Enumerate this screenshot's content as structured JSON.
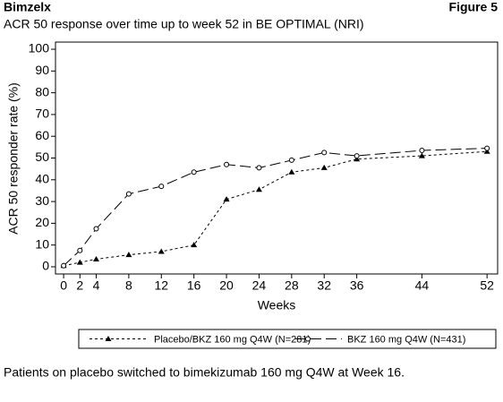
{
  "header": "Bimzelx",
  "figure_label": "Figure 5",
  "footnote": "Patients on placebo switched to bimekizumab 160 mg Q4W at Week 16.",
  "chart_data": {
    "type": "line",
    "title": "ACR 50 response over time up to week 52 in BE OPTIMAL (NRI)",
    "x_label": "Weeks",
    "y_label": "ACR 50 responder rate  (%)",
    "x": [
      0,
      2,
      4,
      8,
      12,
      16,
      20,
      24,
      28,
      32,
      36,
      44,
      52
    ],
    "series": [
      {
        "name": "Placebo/BKZ 160 mg  Q4W (N=281)",
        "color": "#000000",
        "marker": "triangle",
        "dash": "3,3",
        "values": [
          0.5,
          2,
          3.5,
          5.5,
          7,
          10,
          31,
          35.5,
          43.5,
          45.5,
          49.5,
          51,
          53
        ]
      },
      {
        "name": "BKZ 160 mg  Q4W  (N=431)",
        "color": "#000000",
        "marker": "circle",
        "dash": "12,5",
        "values": [
          0.5,
          7.5,
          17.5,
          33.5,
          37,
          43.5,
          47,
          45.5,
          49,
          52.5,
          51,
          53.5,
          54.5
        ]
      }
    ],
    "xlim": [
      -1,
      53.3
    ],
    "ylim": [
      -3.3,
      103.3
    ],
    "xticks": [
      0,
      2,
      4,
      8,
      12,
      16,
      20,
      24,
      28,
      32,
      36,
      44,
      52
    ],
    "yticks": [
      0,
      10,
      20,
      30,
      40,
      50,
      60,
      70,
      80,
      90,
      100
    ],
    "legend": "bottom"
  }
}
